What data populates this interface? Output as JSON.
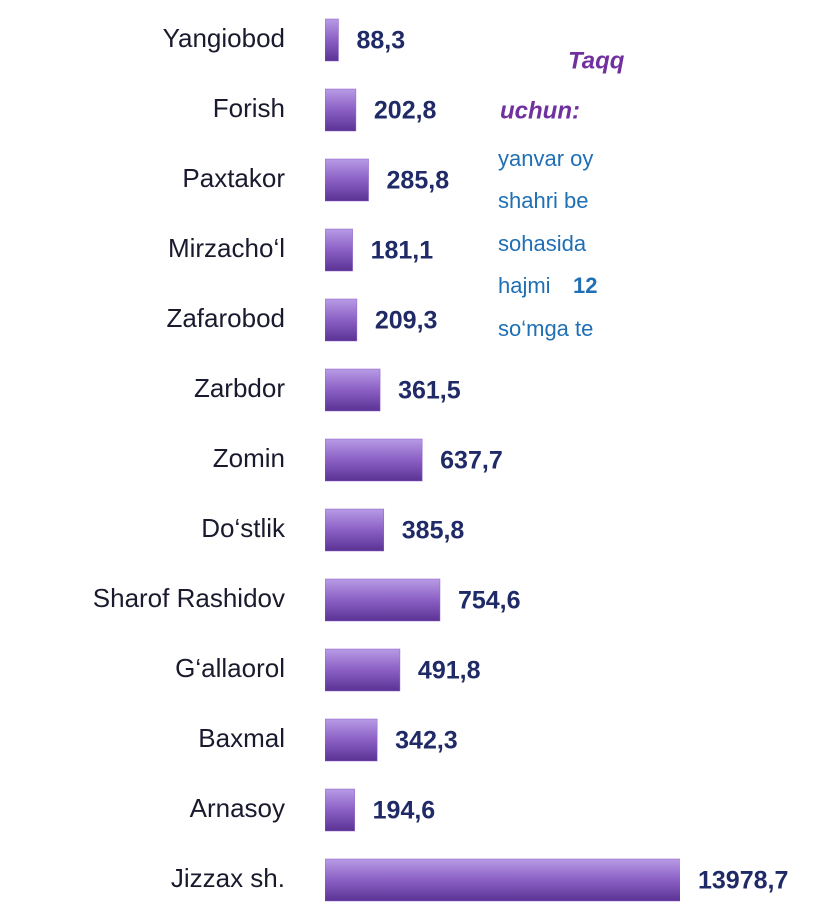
{
  "chart_data": {
    "type": "bar",
    "orientation": "horizontal",
    "categories": [
      "Yangiobod",
      "Forish",
      "Paxtakor",
      "Mirzacho‘l",
      "Zafarobod",
      "Zarbdor",
      "Zomin",
      "Do‘stlik",
      "Sharof Rashidov",
      "G‘allaorol",
      "Baxmal",
      "Arnasoy",
      "Jizzax sh."
    ],
    "values": [
      88.3,
      202.8,
      285.8,
      181.1,
      209.3,
      361.5,
      637.7,
      385.8,
      754.6,
      491.8,
      342.3,
      194.6,
      13978.7
    ],
    "value_labels": [
      "88,3",
      "202,8",
      "285,8",
      "181,1",
      "209,3",
      "361,5",
      "637,7",
      "385,8",
      "754,6",
      "491,8",
      "342,3",
      "194,6",
      "13978,7"
    ],
    "color": "#8b5fc4",
    "xlim": [
      0,
      2330
    ]
  },
  "side_text": {
    "line1": "Taqq",
    "line2": "uchun:",
    "line3": "yanvar oy",
    "line4": "shahri  be",
    "line5": "sohasida",
    "line6a": "hajmi",
    "line6b": "12",
    "line7": "so‘mga te"
  }
}
